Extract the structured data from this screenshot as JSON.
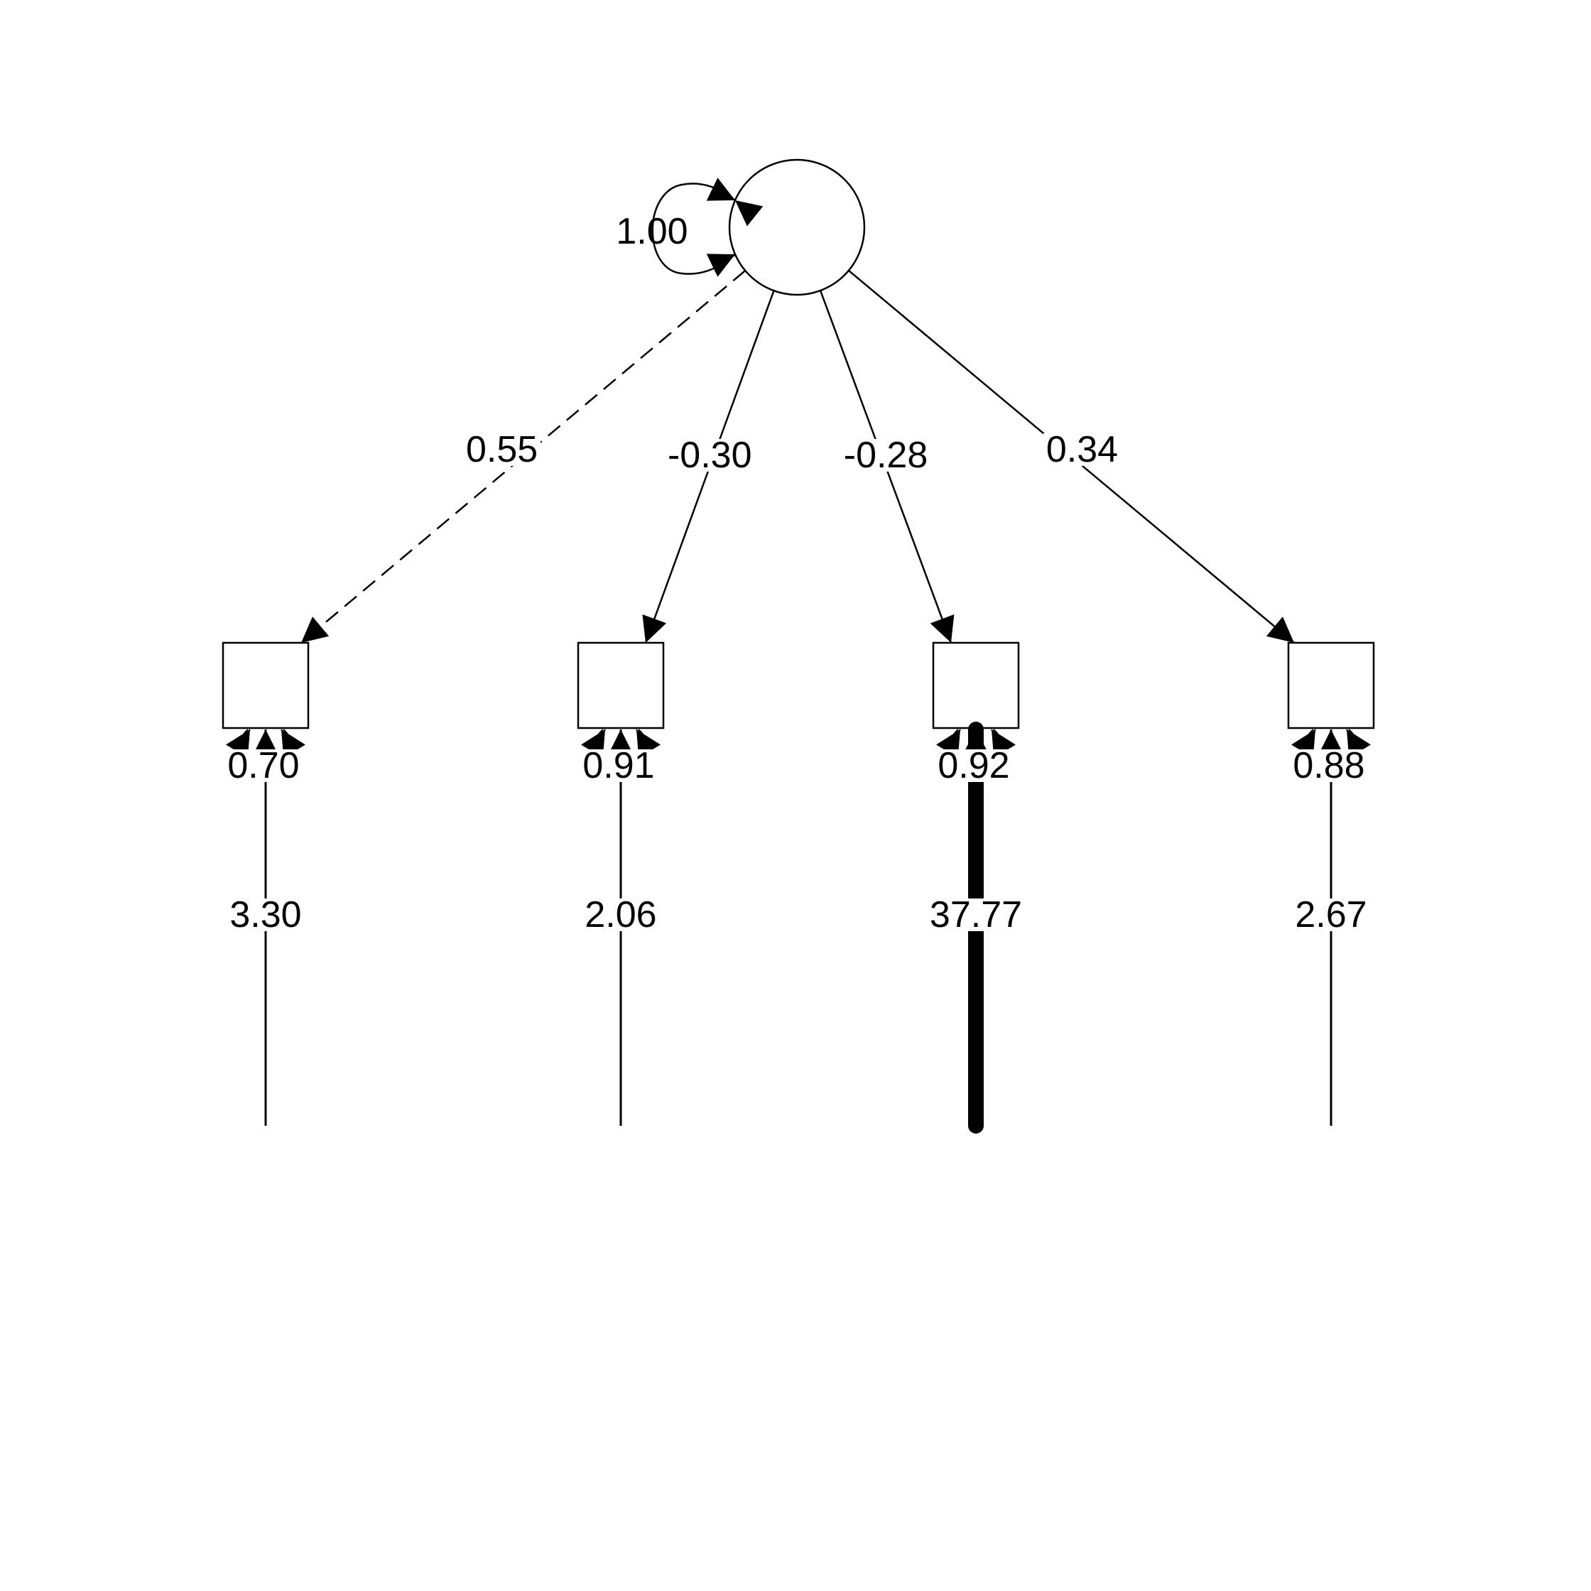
{
  "latent": {
    "name": "",
    "variance": "1.00"
  },
  "indicators": [
    {
      "name": "",
      "loading": "0.55",
      "residual": "0.70",
      "intercept": "3.30",
      "loading_dashed": true,
      "intercept_heavy": false
    },
    {
      "name": "",
      "loading": "-0.30",
      "residual": "0.91",
      "intercept": "2.06",
      "loading_dashed": false,
      "intercept_heavy": false
    },
    {
      "name": "",
      "loading": "-0.28",
      "residual": "0.92",
      "intercept": "37.77",
      "loading_dashed": false,
      "intercept_heavy": true
    },
    {
      "name": "",
      "loading": "0.34",
      "residual": "0.88",
      "intercept": "2.67",
      "loading_dashed": false,
      "intercept_heavy": false
    }
  ],
  "colors": {
    "line": "#000000",
    "background": "#ffffff"
  }
}
